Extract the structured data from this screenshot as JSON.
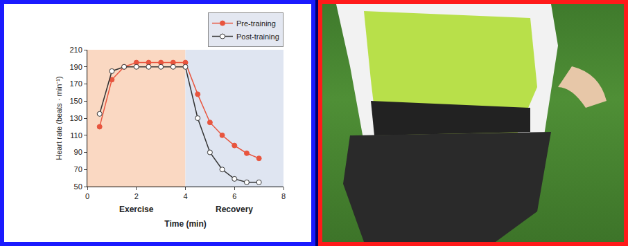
{
  "chart_data": {
    "type": "line",
    "x_title": "Time (min)",
    "y_title": "Heart rate (beats · min⁻¹)",
    "xlim": [
      0,
      8
    ],
    "xticks": [
      0,
      2,
      4,
      6,
      8
    ],
    "ylim": [
      50,
      210
    ],
    "yticks": [
      50,
      70,
      90,
      110,
      130,
      150,
      170,
      190,
      210
    ],
    "grid": false,
    "legend": "top-right",
    "regions": [
      {
        "label": "Exercise",
        "x0": 0,
        "x1": 4,
        "color": "#fad8c2"
      },
      {
        "label": "Recovery",
        "x0": 4,
        "x1": 8,
        "color": "#dfe5f1"
      }
    ],
    "x": [
      0.5,
      1,
      1.5,
      2,
      2.5,
      3,
      3.5,
      4,
      4.5,
      5,
      5.5,
      6,
      6.5,
      7
    ],
    "series": [
      {
        "name": "Pre-training",
        "color": "#e8553e",
        "marker": "circle",
        "values": [
          120,
          175,
          190,
          195,
          195,
          195,
          195,
          195,
          158,
          125,
          110,
          98,
          89,
          83
        ]
      },
      {
        "name": "Post-training",
        "color": "#333333",
        "marker": "open_circle",
        "values": [
          135,
          185,
          190,
          190,
          190,
          190,
          190,
          190,
          130,
          90,
          70,
          59,
          55,
          55
        ]
      }
    ]
  }
}
